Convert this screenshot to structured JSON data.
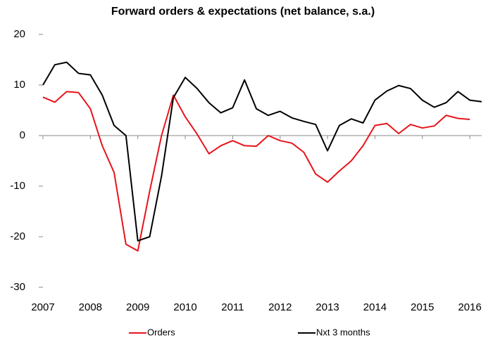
{
  "chart_data": {
    "type": "line",
    "title": "Forward orders & expectations (net balance, s.a.)",
    "x": [
      2007,
      2007.25,
      2007.5,
      2007.75,
      2008,
      2008.25,
      2008.5,
      2008.75,
      2009,
      2009.25,
      2009.5,
      2009.75,
      2010,
      2010.25,
      2010.5,
      2010.75,
      2011,
      2011.25,
      2011.5,
      2011.75,
      2012,
      2012.25,
      2012.5,
      2012.75,
      2013,
      2013.25,
      2013.5,
      2013.75,
      2014,
      2014.25,
      2014.5,
      2014.75,
      2015,
      2015.25,
      2015.5,
      2015.75,
      2016,
      2016.25
    ],
    "series": [
      {
        "name": "Orders",
        "color": "#e8141b",
        "values": [
          7.6,
          6.6,
          8.7,
          8.5,
          5.3,
          -2,
          -7.3,
          -21.5,
          -22.8,
          -11,
          0,
          8,
          3.7,
          0.3,
          -3.6,
          -2,
          -1,
          -2,
          -2.1,
          0,
          -1,
          -1.5,
          -3.3,
          -7.6,
          -9.2,
          -7,
          -5,
          -2,
          2,
          2.4,
          0.4,
          2.2,
          1.5,
          1.9,
          4,
          3.4,
          3.2,
          null
        ]
      },
      {
        "name": "Nxt 3 months",
        "color": "#000000",
        "values": [
          10,
          14,
          14.5,
          12.3,
          12,
          8,
          2,
          0,
          -20.8,
          -20,
          -8,
          7.5,
          11.5,
          9.3,
          6.5,
          4.5,
          5.5,
          11,
          5.3,
          4,
          4.8,
          3.5,
          2.8,
          2.2,
          -3,
          2,
          3.3,
          2.5,
          7,
          8.8,
          9.9,
          9.3,
          7,
          5.6,
          6.5,
          8.7,
          7,
          6.7
        ]
      }
    ],
    "xlim": [
      2007,
      2016.25
    ],
    "xticks": [
      2007,
      2008,
      2009,
      2010,
      2011,
      2012,
      2013,
      2014,
      2015,
      2016
    ],
    "ylim": [
      -30,
      20
    ],
    "yticks": [
      -30,
      -20,
      -10,
      0,
      10,
      20
    ],
    "grid": false,
    "legend": "bottom"
  }
}
